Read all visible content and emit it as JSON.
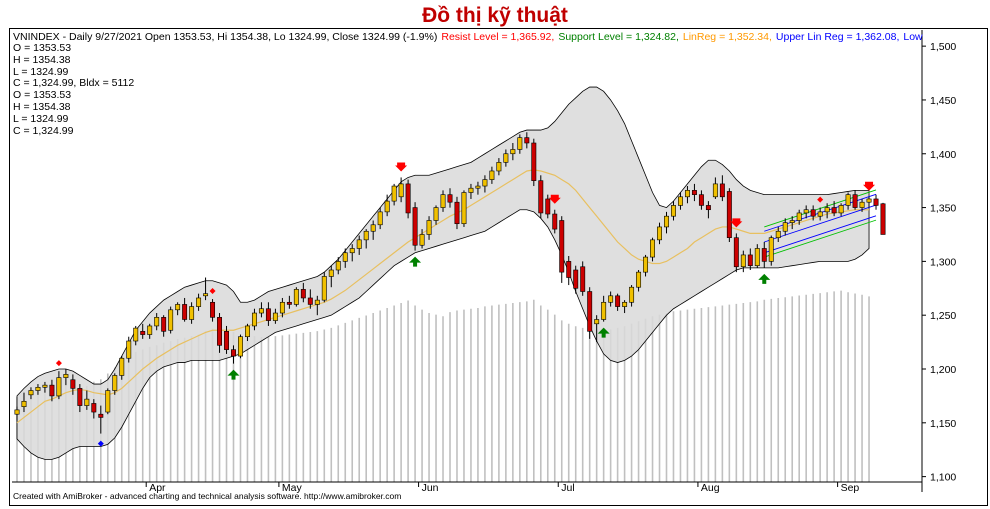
{
  "page_title": "Đồ thị kỹ thuật",
  "header": {
    "info": "VNINDEX - Daily 9/27/2021 Open 1353.53, Hi 1354.38, Lo 1324.99, Close 1324.99 (-1.9%)",
    "resist": "Resist Level = 1,365.92,",
    "support": "Support Level = 1,324.82,",
    "linreg": "LinReg = 1,352.34,",
    "upper": "Upper Lin Reg = 1,362.08,",
    "lower": "Lowe"
  },
  "ohlc_lines": [
    "O = 1353.53",
    "H = 1354.38",
    "L = 1324.99",
    "C  = 1,324.99, Bldx = 5112",
    "O = 1353.53",
    "H = 1354.38",
    "L = 1324.99",
    "C  = 1,324.99"
  ],
  "footer": "Created with AmiBroker - advanced charting and technical analysis software. http://www.amibroker.com",
  "colors": {
    "title": "#c00000",
    "up": "#f0c000",
    "down": "#cc0000",
    "band_fill": "#d9d9d9",
    "ma": "#e8c060",
    "volume": "#c0c0c0",
    "resist": "#ff0000",
    "support": "#008000",
    "linreg": "#ff9900",
    "upper": "#0000ff",
    "lower": "#0000ff",
    "channel": "#00c000"
  },
  "chart_data": {
    "type": "candlestick",
    "ylim": [
      1095,
      1515
    ],
    "yticks": [
      1100,
      1150,
      1200,
      1250,
      1300,
      1350,
      1400,
      1450,
      1500
    ],
    "ytick_labels": [
      "1,100",
      "1,150",
      "1,200",
      "1,250",
      "1,300",
      "1,350",
      "1,400",
      "1,450",
      "1,500"
    ],
    "month_labels": [
      {
        "label": "Apr",
        "index": 19
      },
      {
        "label": "May",
        "index": 38
      },
      {
        "label": "Jun",
        "index": 58
      },
      {
        "label": "Jul",
        "index": 78
      },
      {
        "label": "Aug",
        "index": 98
      },
      {
        "label": "Sep",
        "index": 118
      }
    ],
    "candles": [
      {
        "o": 1158,
        "h": 1165,
        "l": 1152,
        "c": 1162
      },
      {
        "o": 1165,
        "h": 1178,
        "l": 1160,
        "c": 1170
      },
      {
        "o": 1176,
        "h": 1183,
        "l": 1172,
        "c": 1180
      },
      {
        "o": 1180,
        "h": 1186,
        "l": 1176,
        "c": 1183
      },
      {
        "o": 1183,
        "h": 1188,
        "l": 1178,
        "c": 1185
      },
      {
        "o": 1185,
        "h": 1190,
        "l": 1170,
        "c": 1175
      },
      {
        "o": 1175,
        "h": 1198,
        "l": 1172,
        "c": 1192
      },
      {
        "o": 1192,
        "h": 1200,
        "l": 1185,
        "c": 1195
      },
      {
        "o": 1190,
        "h": 1195,
        "l": 1176,
        "c": 1182
      },
      {
        "o": 1182,
        "h": 1186,
        "l": 1160,
        "c": 1166
      },
      {
        "o": 1166,
        "h": 1180,
        "l": 1162,
        "c": 1172
      },
      {
        "o": 1168,
        "h": 1172,
        "l": 1154,
        "c": 1160
      },
      {
        "o": 1158,
        "h": 1166,
        "l": 1140,
        "c": 1155
      },
      {
        "o": 1160,
        "h": 1182,
        "l": 1158,
        "c": 1180
      },
      {
        "o": 1180,
        "h": 1196,
        "l": 1176,
        "c": 1194
      },
      {
        "o": 1194,
        "h": 1212,
        "l": 1190,
        "c": 1210
      },
      {
        "o": 1210,
        "h": 1230,
        "l": 1206,
        "c": 1226
      },
      {
        "o": 1226,
        "h": 1240,
        "l": 1222,
        "c": 1238
      },
      {
        "o": 1235,
        "h": 1242,
        "l": 1228,
        "c": 1232
      },
      {
        "o": 1232,
        "h": 1242,
        "l": 1228,
        "c": 1240
      },
      {
        "o": 1240,
        "h": 1252,
        "l": 1236,
        "c": 1248
      },
      {
        "o": 1248,
        "h": 1250,
        "l": 1230,
        "c": 1235
      },
      {
        "o": 1236,
        "h": 1258,
        "l": 1233,
        "c": 1255
      },
      {
        "o": 1255,
        "h": 1262,
        "l": 1250,
        "c": 1260
      },
      {
        "o": 1260,
        "h": 1266,
        "l": 1244,
        "c": 1246
      },
      {
        "o": 1246,
        "h": 1262,
        "l": 1242,
        "c": 1258
      },
      {
        "o": 1258,
        "h": 1270,
        "l": 1254,
        "c": 1266
      },
      {
        "o": 1268,
        "h": 1285,
        "l": 1264,
        "c": 1270
      },
      {
        "o": 1262,
        "h": 1265,
        "l": 1244,
        "c": 1248
      },
      {
        "o": 1248,
        "h": 1252,
        "l": 1215,
        "c": 1222
      },
      {
        "o": 1235,
        "h": 1240,
        "l": 1214,
        "c": 1218
      },
      {
        "o": 1218,
        "h": 1222,
        "l": 1205,
        "c": 1212
      },
      {
        "o": 1212,
        "h": 1232,
        "l": 1210,
        "c": 1230
      },
      {
        "o": 1230,
        "h": 1242,
        "l": 1226,
        "c": 1240
      },
      {
        "o": 1240,
        "h": 1256,
        "l": 1236,
        "c": 1252
      },
      {
        "o": 1252,
        "h": 1262,
        "l": 1248,
        "c": 1256
      },
      {
        "o": 1256,
        "h": 1262,
        "l": 1240,
        "c": 1245
      },
      {
        "o": 1245,
        "h": 1256,
        "l": 1242,
        "c": 1252
      },
      {
        "o": 1252,
        "h": 1266,
        "l": 1248,
        "c": 1262
      },
      {
        "o": 1262,
        "h": 1268,
        "l": 1256,
        "c": 1260
      },
      {
        "o": 1260,
        "h": 1276,
        "l": 1258,
        "c": 1274
      },
      {
        "o": 1274,
        "h": 1280,
        "l": 1262,
        "c": 1266
      },
      {
        "o": 1266,
        "h": 1274,
        "l": 1256,
        "c": 1260
      },
      {
        "o": 1260,
        "h": 1268,
        "l": 1250,
        "c": 1264
      },
      {
        "o": 1264,
        "h": 1290,
        "l": 1262,
        "c": 1286
      },
      {
        "o": 1286,
        "h": 1296,
        "l": 1276,
        "c": 1292
      },
      {
        "o": 1292,
        "h": 1304,
        "l": 1288,
        "c": 1300
      },
      {
        "o": 1300,
        "h": 1312,
        "l": 1294,
        "c": 1308
      },
      {
        "o": 1308,
        "h": 1316,
        "l": 1300,
        "c": 1312
      },
      {
        "o": 1312,
        "h": 1324,
        "l": 1306,
        "c": 1320
      },
      {
        "o": 1320,
        "h": 1330,
        "l": 1312,
        "c": 1328
      },
      {
        "o": 1328,
        "h": 1338,
        "l": 1320,
        "c": 1334
      },
      {
        "o": 1334,
        "h": 1350,
        "l": 1330,
        "c": 1346
      },
      {
        "o": 1346,
        "h": 1362,
        "l": 1342,
        "c": 1356
      },
      {
        "o": 1356,
        "h": 1372,
        "l": 1352,
        "c": 1370
      },
      {
        "o": 1360,
        "h": 1378,
        "l": 1355,
        "c": 1372
      },
      {
        "o": 1372,
        "h": 1376,
        "l": 1340,
        "c": 1345
      },
      {
        "o": 1350,
        "h": 1355,
        "l": 1310,
        "c": 1315
      },
      {
        "o": 1315,
        "h": 1330,
        "l": 1312,
        "c": 1325
      },
      {
        "o": 1325,
        "h": 1342,
        "l": 1320,
        "c": 1338
      },
      {
        "o": 1338,
        "h": 1352,
        "l": 1334,
        "c": 1350
      },
      {
        "o": 1350,
        "h": 1366,
        "l": 1346,
        "c": 1362
      },
      {
        "o": 1362,
        "h": 1368,
        "l": 1350,
        "c": 1355
      },
      {
        "o": 1355,
        "h": 1360,
        "l": 1330,
        "c": 1335
      },
      {
        "o": 1335,
        "h": 1366,
        "l": 1332,
        "c": 1364
      },
      {
        "o": 1364,
        "h": 1372,
        "l": 1358,
        "c": 1368
      },
      {
        "o": 1368,
        "h": 1374,
        "l": 1362,
        "c": 1370
      },
      {
        "o": 1370,
        "h": 1380,
        "l": 1364,
        "c": 1376
      },
      {
        "o": 1376,
        "h": 1388,
        "l": 1372,
        "c": 1384
      },
      {
        "o": 1384,
        "h": 1396,
        "l": 1380,
        "c": 1392
      },
      {
        "o": 1392,
        "h": 1404,
        "l": 1388,
        "c": 1400
      },
      {
        "o": 1400,
        "h": 1410,
        "l": 1394,
        "c": 1404
      },
      {
        "o": 1404,
        "h": 1418,
        "l": 1400,
        "c": 1415
      },
      {
        "o": 1415,
        "h": 1420,
        "l": 1405,
        "c": 1410
      },
      {
        "o": 1410,
        "h": 1414,
        "l": 1370,
        "c": 1375
      },
      {
        "o": 1375,
        "h": 1380,
        "l": 1340,
        "c": 1345
      },
      {
        "o": 1358,
        "h": 1362,
        "l": 1340,
        "c": 1344
      },
      {
        "o": 1344,
        "h": 1348,
        "l": 1326,
        "c": 1330
      },
      {
        "o": 1338,
        "h": 1342,
        "l": 1280,
        "c": 1290
      },
      {
        "o": 1300,
        "h": 1305,
        "l": 1278,
        "c": 1285
      },
      {
        "o": 1292,
        "h": 1296,
        "l": 1270,
        "c": 1275
      },
      {
        "o": 1295,
        "h": 1300,
        "l": 1268,
        "c": 1272
      },
      {
        "o": 1272,
        "h": 1276,
        "l": 1228,
        "c": 1235
      },
      {
        "o": 1242,
        "h": 1250,
        "l": 1225,
        "c": 1246
      },
      {
        "o": 1246,
        "h": 1268,
        "l": 1244,
        "c": 1262
      },
      {
        "o": 1262,
        "h": 1272,
        "l": 1258,
        "c": 1268
      },
      {
        "o": 1268,
        "h": 1270,
        "l": 1254,
        "c": 1258
      },
      {
        "o": 1258,
        "h": 1264,
        "l": 1252,
        "c": 1262
      },
      {
        "o": 1262,
        "h": 1278,
        "l": 1258,
        "c": 1276
      },
      {
        "o": 1276,
        "h": 1292,
        "l": 1272,
        "c": 1290
      },
      {
        "o": 1290,
        "h": 1306,
        "l": 1286,
        "c": 1304
      },
      {
        "o": 1304,
        "h": 1322,
        "l": 1300,
        "c": 1320
      },
      {
        "o": 1320,
        "h": 1336,
        "l": 1316,
        "c": 1332
      },
      {
        "o": 1332,
        "h": 1346,
        "l": 1326,
        "c": 1342
      },
      {
        "o": 1342,
        "h": 1356,
        "l": 1338,
        "c": 1352
      },
      {
        "o": 1352,
        "h": 1364,
        "l": 1348,
        "c": 1360
      },
      {
        "o": 1360,
        "h": 1370,
        "l": 1354,
        "c": 1366
      },
      {
        "o": 1366,
        "h": 1372,
        "l": 1356,
        "c": 1362
      },
      {
        "o": 1362,
        "h": 1366,
        "l": 1348,
        "c": 1352
      },
      {
        "o": 1352,
        "h": 1356,
        "l": 1340,
        "c": 1348
      },
      {
        "o": 1360,
        "h": 1378,
        "l": 1358,
        "c": 1372
      },
      {
        "o": 1372,
        "h": 1380,
        "l": 1356,
        "c": 1360
      },
      {
        "o": 1365,
        "h": 1368,
        "l": 1318,
        "c": 1322
      },
      {
        "o": 1322,
        "h": 1326,
        "l": 1290,
        "c": 1295
      },
      {
        "o": 1295,
        "h": 1310,
        "l": 1290,
        "c": 1306
      },
      {
        "o": 1306,
        "h": 1312,
        "l": 1292,
        "c": 1296
      },
      {
        "o": 1296,
        "h": 1316,
        "l": 1294,
        "c": 1312
      },
      {
        "o": 1312,
        "h": 1318,
        "l": 1294,
        "c": 1300
      },
      {
        "o": 1300,
        "h": 1324,
        "l": 1296,
        "c": 1322
      },
      {
        "o": 1322,
        "h": 1332,
        "l": 1318,
        "c": 1328
      },
      {
        "o": 1328,
        "h": 1340,
        "l": 1324,
        "c": 1336
      },
      {
        "o": 1336,
        "h": 1342,
        "l": 1330,
        "c": 1338
      },
      {
        "o": 1338,
        "h": 1348,
        "l": 1334,
        "c": 1345
      },
      {
        "o": 1345,
        "h": 1352,
        "l": 1340,
        "c": 1348
      },
      {
        "o": 1348,
        "h": 1352,
        "l": 1338,
        "c": 1342
      },
      {
        "o": 1342,
        "h": 1350,
        "l": 1338,
        "c": 1346
      },
      {
        "o": 1346,
        "h": 1354,
        "l": 1340,
        "c": 1350
      },
      {
        "o": 1350,
        "h": 1356,
        "l": 1342,
        "c": 1345
      },
      {
        "o": 1345,
        "h": 1354,
        "l": 1342,
        "c": 1352
      },
      {
        "o": 1352,
        "h": 1364,
        "l": 1348,
        "c": 1362
      },
      {
        "o": 1362,
        "h": 1366,
        "l": 1348,
        "c": 1350
      },
      {
        "o": 1350,
        "h": 1358,
        "l": 1346,
        "c": 1355
      },
      {
        "o": 1355,
        "h": 1360,
        "l": 1350,
        "c": 1358
      },
      {
        "o": 1358,
        "h": 1362,
        "l": 1348,
        "c": 1352
      },
      {
        "o": 1353.53,
        "h": 1354.38,
        "l": 1324.99,
        "c": 1324.99
      }
    ],
    "upper_band": [
      1175,
      1182,
      1188,
      1193,
      1196,
      1198,
      1200,
      1200,
      1198,
      1194,
      1190,
      1186,
      1186,
      1190,
      1200,
      1212,
      1224,
      1236,
      1244,
      1252,
      1258,
      1264,
      1268,
      1272,
      1276,
      1278,
      1280,
      1282,
      1282,
      1280,
      1278,
      1272,
      1262,
      1262,
      1264,
      1268,
      1272,
      1274,
      1276,
      1278,
      1280,
      1282,
      1284,
      1286,
      1290,
      1296,
      1302,
      1310,
      1318,
      1326,
      1334,
      1342,
      1350,
      1358,
      1366,
      1374,
      1378,
      1380,
      1380,
      1380,
      1382,
      1384,
      1386,
      1388,
      1390,
      1392,
      1396,
      1400,
      1404,
      1408,
      1412,
      1416,
      1420,
      1422,
      1422,
      1422,
      1424,
      1430,
      1438,
      1446,
      1452,
      1458,
      1462,
      1462,
      1458,
      1450,
      1440,
      1428,
      1412,
      1396,
      1380,
      1364,
      1352,
      1350,
      1356,
      1364,
      1372,
      1380,
      1388,
      1394,
      1394,
      1390,
      1384,
      1376,
      1370,
      1366,
      1364,
      1362,
      1362,
      1362,
      1362,
      1362,
      1362,
      1362,
      1362,
      1362,
      1362,
      1363,
      1364,
      1365,
      1366,
      1366,
      1366
    ],
    "lower_band": [
      1135,
      1128,
      1122,
      1118,
      1116,
      1116,
      1118,
      1122,
      1126,
      1128,
      1128,
      1128,
      1128,
      1130,
      1136,
      1146,
      1158,
      1170,
      1182,
      1192,
      1198,
      1202,
      1204,
      1206,
      1206,
      1208,
      1208,
      1208,
      1208,
      1208,
      1210,
      1212,
      1214,
      1218,
      1222,
      1226,
      1230,
      1234,
      1236,
      1238,
      1240,
      1242,
      1244,
      1246,
      1248,
      1250,
      1254,
      1258,
      1262,
      1266,
      1272,
      1278,
      1284,
      1290,
      1296,
      1300,
      1304,
      1308,
      1310,
      1312,
      1314,
      1316,
      1318,
      1320,
      1322,
      1324,
      1326,
      1328,
      1332,
      1336,
      1340,
      1344,
      1348,
      1348,
      1346,
      1340,
      1332,
      1320,
      1306,
      1290,
      1272,
      1256,
      1240,
      1226,
      1214,
      1208,
      1206,
      1208,
      1212,
      1218,
      1226,
      1234,
      1242,
      1250,
      1256,
      1260,
      1264,
      1268,
      1272,
      1276,
      1280,
      1284,
      1288,
      1292,
      1294,
      1294,
      1294,
      1294,
      1294,
      1294,
      1295,
      1296,
      1297,
      1298,
      1299,
      1300,
      1300,
      1300,
      1300,
      1300,
      1302,
      1306,
      1312
    ],
    "moving_average": [
      1150,
      1155,
      1160,
      1165,
      1170,
      1172,
      1175,
      1178,
      1180,
      1181,
      1180,
      1178,
      1177,
      1176,
      1178,
      1182,
      1188,
      1194,
      1200,
      1205,
      1210,
      1214,
      1218,
      1222,
      1225,
      1228,
      1231,
      1234,
      1236,
      1236,
      1236,
      1236,
      1238,
      1240,
      1242,
      1244,
      1246,
      1248,
      1250,
      1252,
      1254,
      1256,
      1258,
      1260,
      1262,
      1265,
      1269,
      1273,
      1278,
      1283,
      1288,
      1293,
      1298,
      1303,
      1308,
      1313,
      1318,
      1322,
      1326,
      1330,
      1334,
      1338,
      1342,
      1345,
      1348,
      1352,
      1356,
      1360,
      1364,
      1368,
      1372,
      1376,
      1380,
      1384,
      1385,
      1384,
      1382,
      1380,
      1376,
      1372,
      1366,
      1358,
      1350,
      1342,
      1334,
      1326,
      1318,
      1312,
      1306,
      1302,
      1300,
      1298,
      1298,
      1300,
      1304,
      1308,
      1312,
      1318,
      1322,
      1326,
      1330,
      1332,
      1332,
      1330,
      1328,
      1326,
      1326,
      1326,
      1328,
      1330,
      1332,
      1334,
      1336,
      1338,
      1340,
      1342,
      1344,
      1345,
      1346,
      1347,
      1348,
      1348,
      1348
    ],
    "volume": [
      205,
      218,
      228,
      232,
      236,
      236,
      245,
      254,
      240,
      225,
      232,
      242,
      248,
      262,
      276,
      288,
      300,
      314,
      320,
      326,
      330,
      336,
      340,
      345,
      348,
      352,
      356,
      364,
      370,
      372,
      368,
      362,
      356,
      354,
      352,
      350,
      350,
      352,
      354,
      356,
      358,
      360,
      362,
      364,
      368,
      372,
      378,
      384,
      390,
      396,
      402,
      408,
      414,
      420,
      426,
      432,
      438,
      426,
      416,
      408,
      404,
      400,
      410,
      414,
      416,
      418,
      420,
      424,
      426,
      428,
      430,
      432,
      434,
      436,
      440,
      426,
      416,
      404,
      390,
      382,
      376,
      372,
      370,
      368,
      366,
      368,
      372,
      376,
      382,
      388,
      394,
      400,
      404,
      408,
      412,
      414,
      416,
      418,
      420,
      422,
      424,
      426,
      428,
      430,
      432,
      434,
      436,
      440,
      442,
      444,
      446,
      448,
      450,
      452,
      454,
      456,
      458,
      460,
      462,
      458,
      455,
      452,
      448
    ],
    "volume_max": 600,
    "resist_markers": [
      55,
      77,
      103,
      122
    ],
    "resist_diamonds": [
      6,
      28,
      115
    ],
    "support_markers": [
      31,
      57,
      84,
      107
    ],
    "support_diamonds": [
      12
    ],
    "channel": {
      "start_index": 107,
      "end_index": 123,
      "center_start": 1318,
      "center_end": 1352.34,
      "half_width": 10,
      "outer": 4
    },
    "resist_level": 1365.92,
    "support_level": 1324.82
  }
}
